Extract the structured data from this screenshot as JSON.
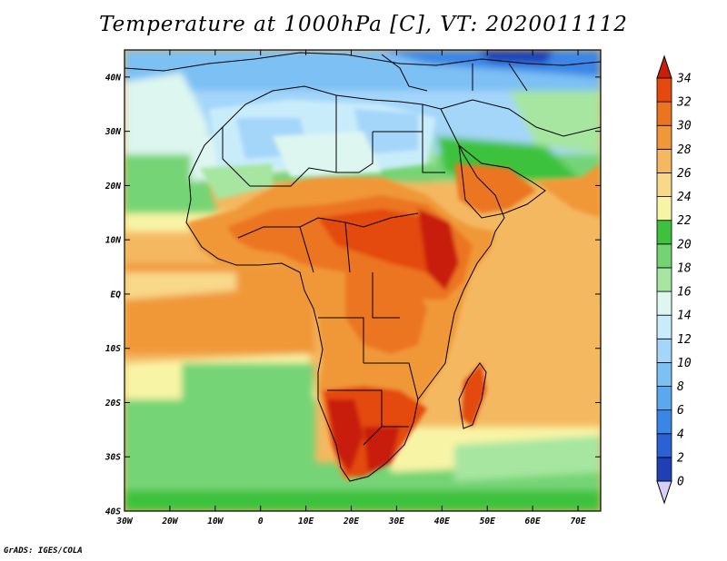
{
  "title": "Temperature at 1000hPa [C], VT: 2020011112",
  "footer": "GrADS: IGES/COLA",
  "map": {
    "projection": "lat-lon",
    "lon_range": [
      -30,
      75
    ],
    "lat_range": [
      -40,
      45
    ],
    "x_ticks": [
      "30W",
      "20W",
      "10W",
      "0",
      "10E",
      "20E",
      "30E",
      "40E",
      "50E",
      "60E",
      "70E"
    ],
    "y_ticks": [
      "40S",
      "30S",
      "20S",
      "10S",
      "EQ",
      "10N",
      "20N",
      "30N",
      "40N"
    ]
  },
  "colorbar": {
    "labels": [
      "0",
      "2",
      "4",
      "6",
      "8",
      "10",
      "12",
      "14",
      "16",
      "18",
      "20",
      "22",
      "24",
      "26",
      "28",
      "30",
      "32",
      "34"
    ],
    "colors": [
      "#1a1a8c",
      "#1f3fb5",
      "#2a62d6",
      "#3a86e6",
      "#5aa8ee",
      "#7cc0f4",
      "#a4d6fa",
      "#c8ecfa",
      "#ddf6f0",
      "#a6e6a0",
      "#74d474",
      "#3ec23e",
      "#f8f4a6",
      "#f8d88a",
      "#f4b860",
      "#f09838",
      "#ec7420",
      "#e44a10",
      "#c81e0a"
    ],
    "under_color": "#d8d0f4",
    "over_color": "#c81e0a"
  }
}
